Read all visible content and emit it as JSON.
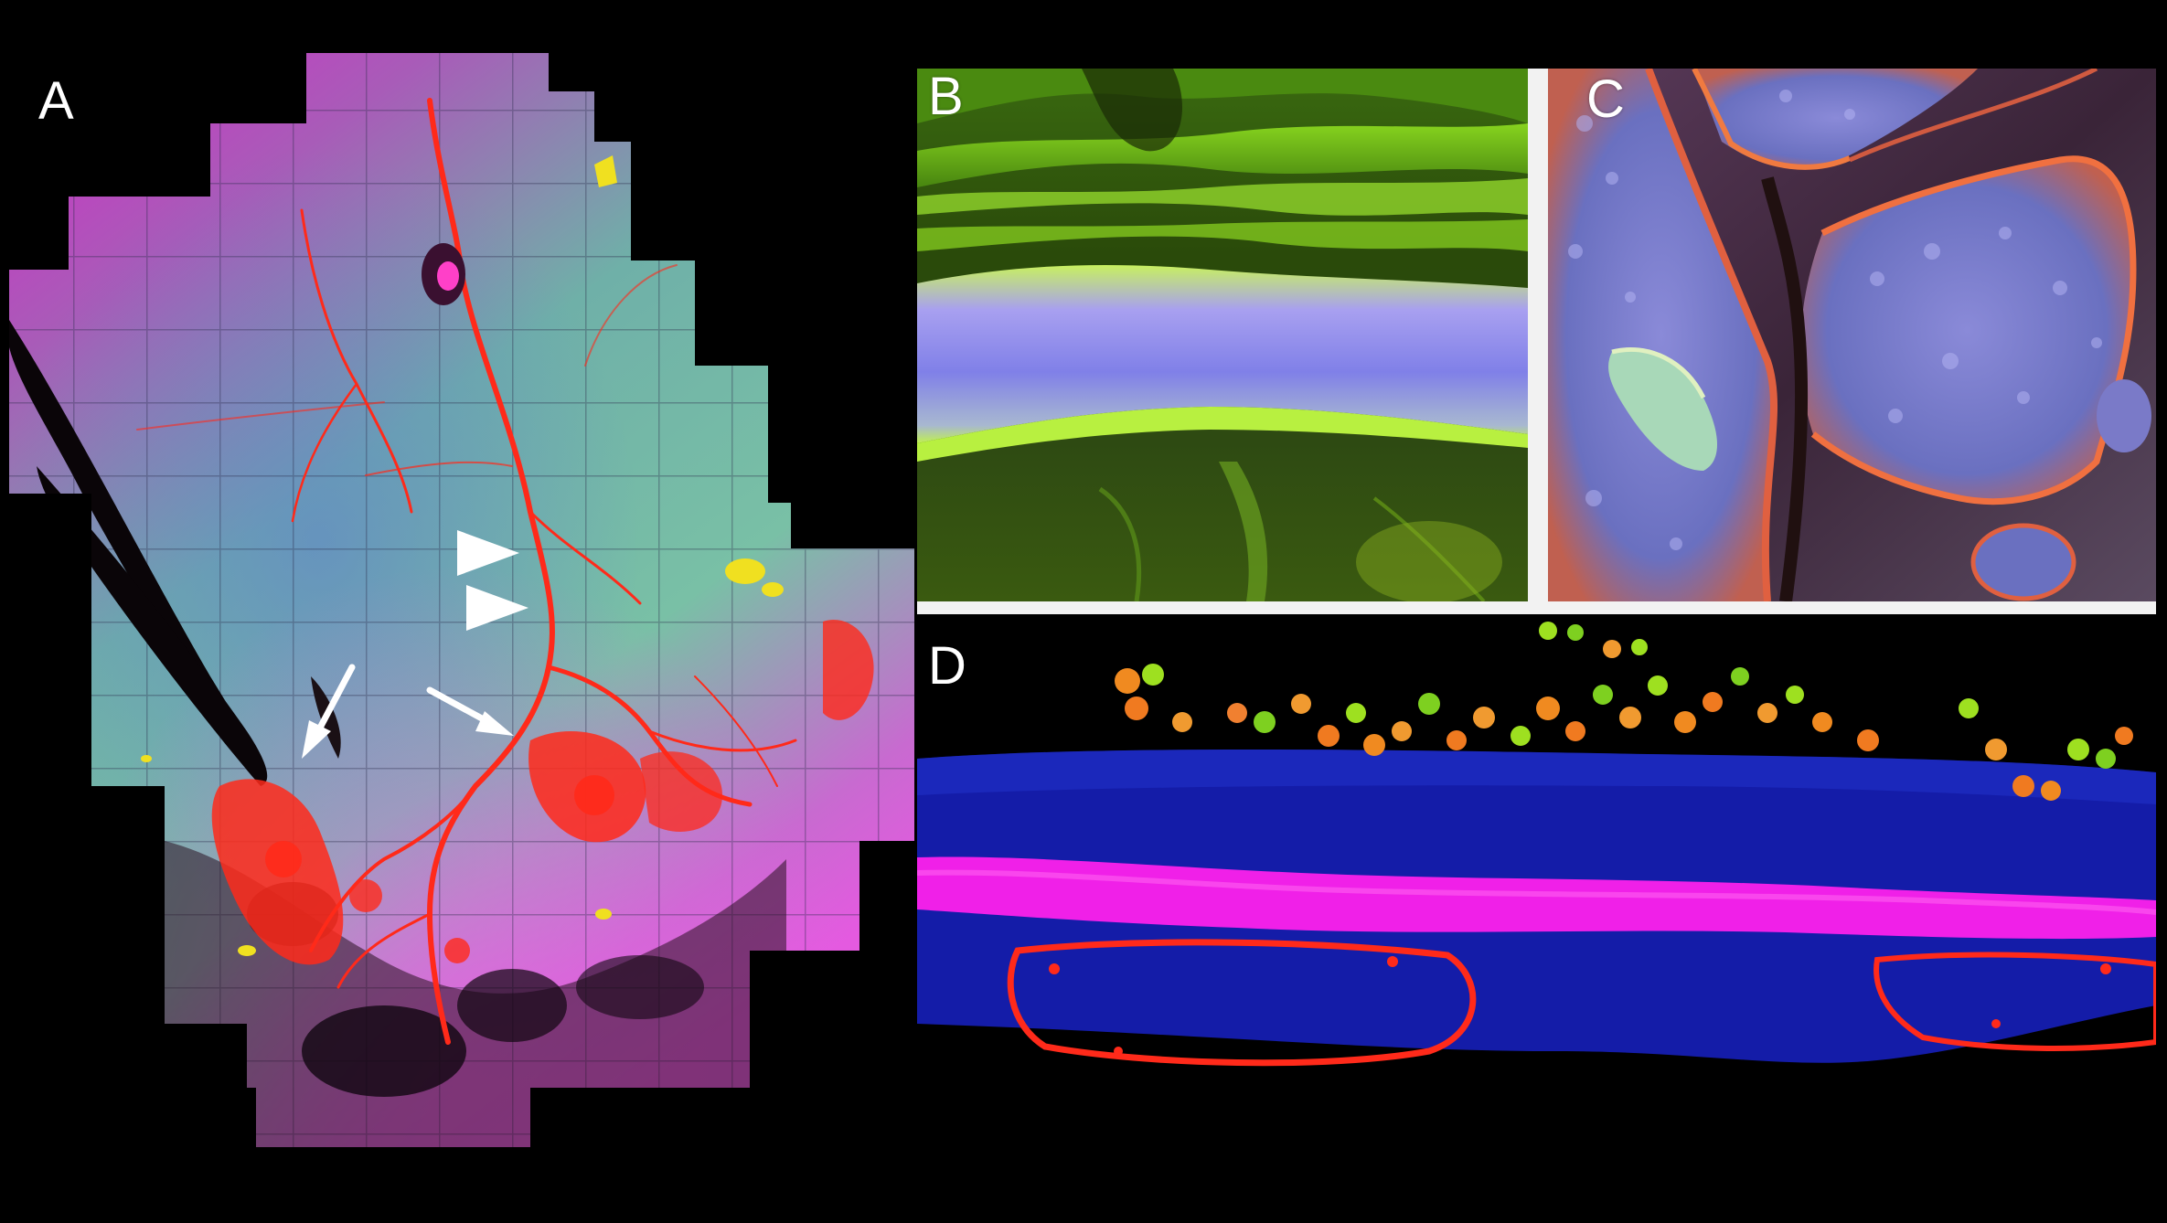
{
  "panels": {
    "a": {
      "label": "A"
    },
    "b": {
      "label": "B"
    },
    "c": {
      "label": "C"
    },
    "d": {
      "label": "D"
    }
  },
  "colors": {
    "background": "#000000",
    "magenta": "#e020e0",
    "teal": "#6fb8a8",
    "vessel_red": "#ff2a1a",
    "yellow": "#e8e020",
    "green": "#7ee020",
    "blue": "#1a2ad0",
    "lavender": "#8c90e0",
    "divider": "#f2f2f2",
    "annotation": "#ffffff"
  },
  "annotations": {
    "arrowheads": 2,
    "arrows": 2
  }
}
